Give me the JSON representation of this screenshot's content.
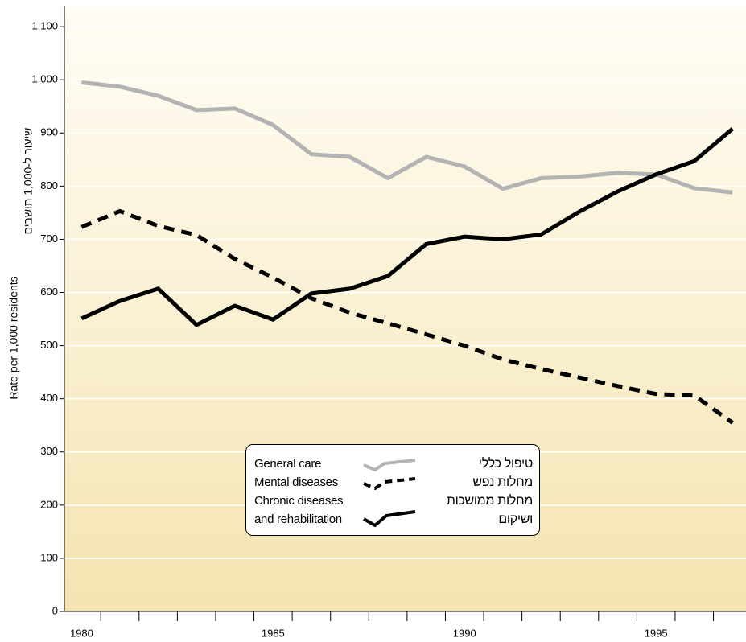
{
  "chart_data": {
    "type": "line",
    "y_label": "Rate per 1,000 residents",
    "y_label_he": "שיעור ל-1,000 תושבים",
    "x": [
      1980,
      1981,
      1982,
      1983,
      1984,
      1985,
      1986,
      1987,
      1988,
      1989,
      1990,
      1991,
      1992,
      1993,
      1994,
      1995,
      1996,
      1997
    ],
    "series": [
      {
        "name": "General care",
        "name_he": "טיפול כללי",
        "color": "#b3b3b3",
        "style": "solid",
        "values": [
          995,
          987,
          970,
          943,
          946,
          915,
          860,
          855,
          815,
          855,
          837,
          795,
          815,
          818,
          825,
          822,
          796,
          788
        ]
      },
      {
        "name": "Mental diseases",
        "name_he": "מחלות נפש",
        "color": "#000000",
        "style": "dashed",
        "values": [
          723,
          753,
          725,
          708,
          663,
          628,
          589,
          562,
          542,
          521,
          500,
          474,
          456,
          440,
          424,
          409,
          406,
          355
        ]
      },
      {
        "name": "Chronic diseases and rehabilitation",
        "name_he": "מחלות ממושכות ושיקום",
        "color": "#000000",
        "style": "solid",
        "values": [
          551,
          584,
          607,
          539,
          575,
          549,
          598,
          607,
          631,
          691,
          705,
          700,
          709,
          752,
          790,
          822,
          847,
          908
        ]
      }
    ],
    "xlim": [
      1979.55,
      1997.35
    ],
    "xticks": [
      1980,
      1985,
      1990,
      1995
    ],
    "ylim": [
      0,
      1138
    ],
    "yticks": [
      0,
      100,
      200,
      300,
      400,
      500,
      600,
      700,
      800,
      900,
      {
        "value": 1000,
        "label": "1,000"
      },
      {
        "value": 1100,
        "label": "1,100"
      }
    ],
    "grid": true
  }
}
